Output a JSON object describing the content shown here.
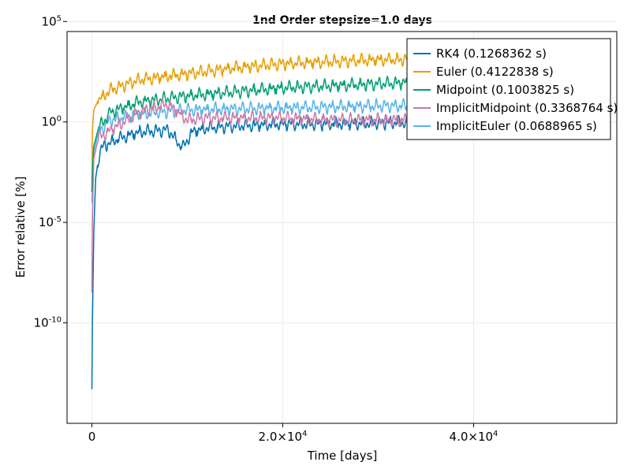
{
  "chart_data": {
    "type": "line",
    "title": "1nd Order stepsize=1.0 days",
    "xlabel": "Time [days]",
    "ylabel": "Error relative [%]",
    "y_scale": "log10",
    "xlim": [
      -2600,
      55000
    ],
    "ylim_log10": [
      -15,
      4.5
    ],
    "grid": true,
    "legend_position": "top-right",
    "x_ticks": [
      {
        "value": 0,
        "label": "0",
        "base": "",
        "exp": ""
      },
      {
        "value": 20000,
        "label": "",
        "base": "2.0×10",
        "exp": "4"
      },
      {
        "value": 40000,
        "label": "",
        "base": "4.0×10",
        "exp": "4"
      }
    ],
    "y_ticks": [
      {
        "value_log10": 5,
        "base": "10",
        "exp": "5"
      },
      {
        "value_log10": 0,
        "base": "10",
        "exp": "0"
      },
      {
        "value_log10": -5,
        "base": "10",
        "exp": "-5"
      },
      {
        "value_log10": -10,
        "base": "10",
        "exp": "-10"
      }
    ],
    "series": [
      {
        "name": "RK4 (0.1268362 s)",
        "color": "#0072b2",
        "x": [
          0,
          50,
          200,
          400,
          700,
          1000,
          2000,
          3000,
          5000,
          8000,
          9500,
          10000,
          10500,
          12000,
          15000,
          20000,
          25000,
          30000,
          35000,
          40000,
          45000,
          50000,
          52500
        ],
        "y_log10": [
          -13.3,
          -10.2,
          -5.5,
          -2.8,
          -1.8,
          -1.3,
          -1.0,
          -0.8,
          -0.5,
          -0.4,
          -1.3,
          -0.9,
          -0.5,
          -0.3,
          -0.2,
          -0.1,
          -0.1,
          -0.05,
          0.0,
          0.0,
          0.0,
          0.0,
          0.0
        ],
        "spike_top_log10": 0.4
      },
      {
        "name": "Euler (0.4122838 s)",
        "color": "#e69f00",
        "x": [
          0,
          50,
          200,
          700,
          2000,
          5000,
          10000,
          15000,
          20000,
          25000,
          30000,
          35000,
          40000,
          45000,
          50000,
          52500
        ],
        "y_log10": [
          -3.5,
          -0.5,
          0.6,
          1.1,
          1.6,
          2.1,
          2.4,
          2.7,
          2.9,
          3.0,
          3.1,
          3.1,
          3.2,
          3.2,
          3.2,
          3.2
        ],
        "spike_top_log10": 5.5
      },
      {
        "name": "Midpoint (0.1003825 s)",
        "color": "#009e73",
        "x": [
          0,
          50,
          200,
          700,
          2000,
          5000,
          10000,
          15000,
          20000,
          25000,
          30000,
          35000,
          40000,
          45000,
          50000,
          52500
        ],
        "y_log10": [
          -3.5,
          -2.5,
          -1.2,
          -0.3,
          0.5,
          1.0,
          1.3,
          1.5,
          1.7,
          1.8,
          1.9,
          2.0,
          2.0,
          2.1,
          2.1,
          2.1
        ],
        "spike_top_log10": 4.5
      },
      {
        "name": "ImplicitMidpoint (0.3368764 s)",
        "color": "#cc79a7",
        "x": [
          0,
          50,
          200,
          700,
          2000,
          5000,
          8000,
          10000,
          12000,
          15000,
          20000,
          25000,
          30000,
          35000,
          40000,
          45000,
          50000,
          52500
        ],
        "y_log10": [
          -8.5,
          -5.0,
          -1.8,
          -0.8,
          -0.4,
          0.5,
          0.9,
          0.1,
          0.2,
          0.2,
          0.2,
          0.1,
          0.1,
          0.1,
          0.1,
          0.0,
          0.0,
          0.0
        ],
        "spike_top_log10": 1.8
      },
      {
        "name": "ImplicitEuler (0.0688965 s)",
        "color": "#56b4e9",
        "x": [
          0,
          200,
          700,
          2000,
          5000,
          10000,
          20000,
          30000,
          40000,
          52500
        ],
        "y_log10": [
          -4.0,
          -1.5,
          -0.5,
          0.1,
          0.4,
          0.6,
          0.7,
          0.8,
          0.8,
          0.8
        ],
        "spike_top_log10": 1.6
      }
    ]
  }
}
